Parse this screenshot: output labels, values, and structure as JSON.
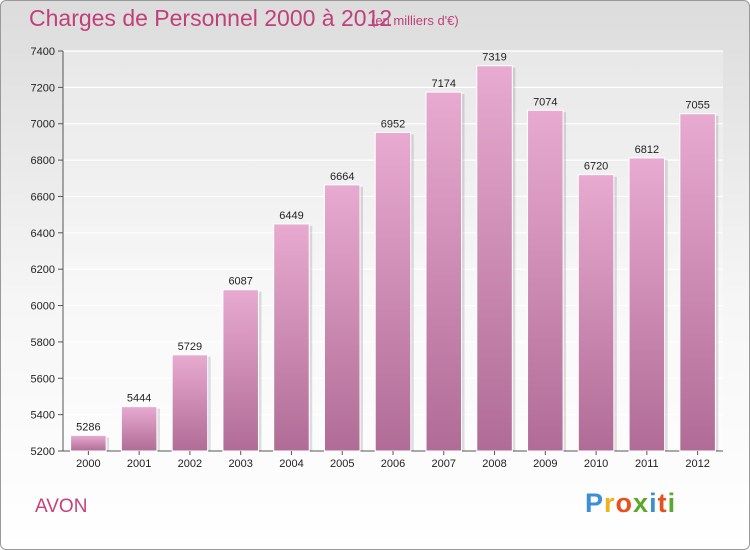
{
  "header": {
    "title": "Charges de Personnel 2000 à 2012",
    "subtitle": "(en milliers d'€)"
  },
  "commune": "AVON",
  "logo": {
    "text": "Proxiti",
    "letters": [
      {
        "char": "P",
        "color": "#3b8fd6"
      },
      {
        "char": "r",
        "color": "#f2b11c"
      },
      {
        "char": "o",
        "color": "#e8501e"
      },
      {
        "char": "x",
        "color": "#5ba82c"
      },
      {
        "char": "i",
        "color": "#3b8fd6"
      },
      {
        "char": "t",
        "color": "#e8501e"
      },
      {
        "char": "i",
        "color": "#5ba82c"
      }
    ]
  },
  "colors": {
    "bar_top": "#e8aad0",
    "bar_bottom": "#b06c96",
    "accent": "#c0407a"
  },
  "chart_data": {
    "type": "bar",
    "title": "Charges de Personnel 2000 à 2012",
    "subtitle": "(en milliers d'€)",
    "xlabel": "",
    "ylabel": "",
    "categories": [
      "2000",
      "2001",
      "2002",
      "2003",
      "2004",
      "2005",
      "2006",
      "2007",
      "2008",
      "2009",
      "2010",
      "2011",
      "2012"
    ],
    "values": [
      5286,
      5444,
      5729,
      6087,
      6449,
      6664,
      6952,
      7174,
      7319,
      7074,
      6720,
      6812,
      7055
    ],
    "ylim": [
      5200,
      7400
    ],
    "yticks": [
      5200,
      5400,
      5600,
      5800,
      6000,
      6200,
      6400,
      6600,
      6800,
      7000,
      7200,
      7400
    ],
    "grid": true
  }
}
